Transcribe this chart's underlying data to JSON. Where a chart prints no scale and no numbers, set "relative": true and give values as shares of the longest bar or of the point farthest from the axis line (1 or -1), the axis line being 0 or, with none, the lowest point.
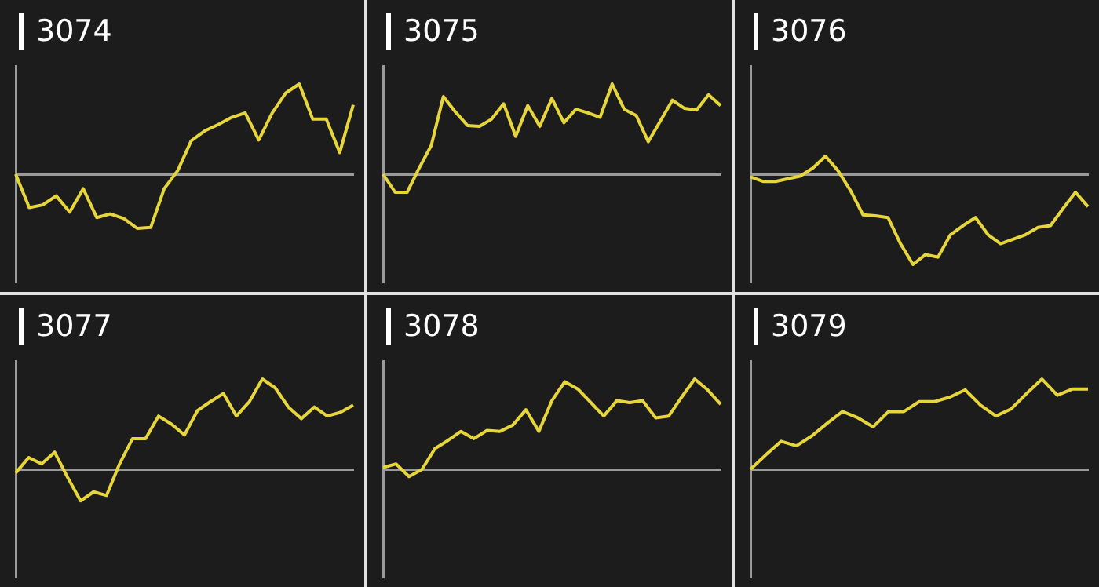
{
  "chart_data": [
    {
      "type": "line",
      "title": "3074",
      "relative": true,
      "grid": false,
      "legend": false,
      "marker": "none",
      "categories": [
        null,
        null,
        null,
        null,
        null,
        null,
        null,
        null,
        null,
        null,
        null,
        null,
        null,
        null,
        null,
        null,
        null,
        null,
        null,
        null,
        null,
        null,
        null,
        null,
        null,
        null
      ],
      "series": [
        {
          "color": "#e6d63c",
          "values": [
            0,
            -0.37,
            -0.34,
            -0.24,
            -0.42,
            -0.16,
            -0.48,
            -0.44,
            -0.49,
            -0.6,
            -0.59,
            -0.16,
            0.04,
            0.37,
            0.48,
            0.55,
            0.63,
            0.68,
            0.38,
            0.68,
            0.9,
            1,
            0.61,
            0.61,
            0.24,
            0.77
          ]
        }
      ]
    },
    {
      "type": "line",
      "title": "3075",
      "relative": true,
      "grid": false,
      "legend": false,
      "marker": "none",
      "categories": [
        null,
        null,
        null,
        null,
        null,
        null,
        null,
        null,
        null,
        null,
        null,
        null,
        null,
        null,
        null,
        null,
        null,
        null,
        null,
        null,
        null,
        null,
        null,
        null,
        null,
        null,
        null,
        null,
        null
      ],
      "series": [
        {
          "color": "#e6d63c",
          "values": [
            0,
            -0.2,
            -0.2,
            0.07,
            0.32,
            0.86,
            0.69,
            0.54,
            0.53,
            0.61,
            0.78,
            0.42,
            0.76,
            0.53,
            0.84,
            0.57,
            0.72,
            0.68,
            0.63,
            1,
            0.72,
            0.65,
            0.36,
            0.59,
            0.82,
            0.73,
            0.71,
            0.88,
            0.76
          ]
        }
      ]
    },
    {
      "type": "line",
      "title": "3076",
      "relative": true,
      "grid": false,
      "legend": false,
      "marker": "none",
      "categories": [
        null,
        null,
        null,
        null,
        null,
        null,
        null,
        null,
        null,
        null,
        null,
        null,
        null,
        null,
        null,
        null,
        null,
        null,
        null,
        null,
        null,
        null,
        null,
        null,
        null,
        null,
        null,
        null
      ],
      "series": [
        {
          "color": "#e6d63c",
          "values": [
            -0.03,
            -0.08,
            -0.08,
            -0.05,
            -0.02,
            0.07,
            0.2,
            0.04,
            -0.18,
            -0.45,
            -0.46,
            -0.48,
            -0.77,
            -1,
            -0.89,
            -0.92,
            -0.67,
            -0.57,
            -0.48,
            -0.67,
            -0.77,
            -0.72,
            -0.67,
            -0.59,
            -0.57,
            -0.38,
            -0.2,
            -0.36
          ]
        }
      ]
    },
    {
      "type": "line",
      "title": "3077",
      "relative": true,
      "grid": false,
      "legend": false,
      "marker": "none",
      "categories": [
        null,
        null,
        null,
        null,
        null,
        null,
        null,
        null,
        null,
        null,
        null,
        null,
        null,
        null,
        null,
        null,
        null,
        null,
        null,
        null,
        null,
        null,
        null,
        null,
        null,
        null,
        null
      ],
      "series": [
        {
          "color": "#e6d63c",
          "values": [
            -0.04,
            0.13,
            0.06,
            0.19,
            -0.09,
            -0.35,
            -0.25,
            -0.29,
            0.06,
            0.34,
            0.34,
            0.59,
            0.5,
            0.38,
            0.65,
            0.75,
            0.84,
            0.59,
            0.75,
            1,
            0.9,
            0.69,
            0.56,
            0.69,
            0.59,
            0.63,
            0.71
          ]
        }
      ]
    },
    {
      "type": "line",
      "title": "3078",
      "relative": true,
      "grid": false,
      "legend": false,
      "marker": "none",
      "categories": [
        null,
        null,
        null,
        null,
        null,
        null,
        null,
        null,
        null,
        null,
        null,
        null,
        null,
        null,
        null,
        null,
        null,
        null,
        null,
        null,
        null,
        null,
        null,
        null,
        null,
        null,
        null
      ],
      "series": [
        {
          "color": "#e6d63c",
          "values": [
            0.02,
            0.06,
            -0.08,
            0,
            0.23,
            0.32,
            0.42,
            0.34,
            0.43,
            0.42,
            0.49,
            0.66,
            0.42,
            0.76,
            0.97,
            0.89,
            0.74,
            0.59,
            0.76,
            0.74,
            0.76,
            0.57,
            0.59,
            0.8,
            1,
            0.88,
            0.72
          ]
        }
      ]
    },
    {
      "type": "line",
      "title": "3079",
      "relative": true,
      "grid": false,
      "legend": false,
      "marker": "none",
      "categories": [
        null,
        null,
        null,
        null,
        null,
        null,
        null,
        null,
        null,
        null,
        null,
        null,
        null,
        null,
        null,
        null,
        null,
        null,
        null,
        null,
        null,
        null,
        null
      ],
      "series": [
        {
          "color": "#e6d63c",
          "values": [
            0,
            0.16,
            0.31,
            0.26,
            0.37,
            0.51,
            0.64,
            0.57,
            0.47,
            0.64,
            0.64,
            0.75,
            0.75,
            0.8,
            0.88,
            0.71,
            0.59,
            0.67,
            0.84,
            1,
            0.82,
            0.89,
            0.89
          ]
        }
      ]
    }
  ]
}
